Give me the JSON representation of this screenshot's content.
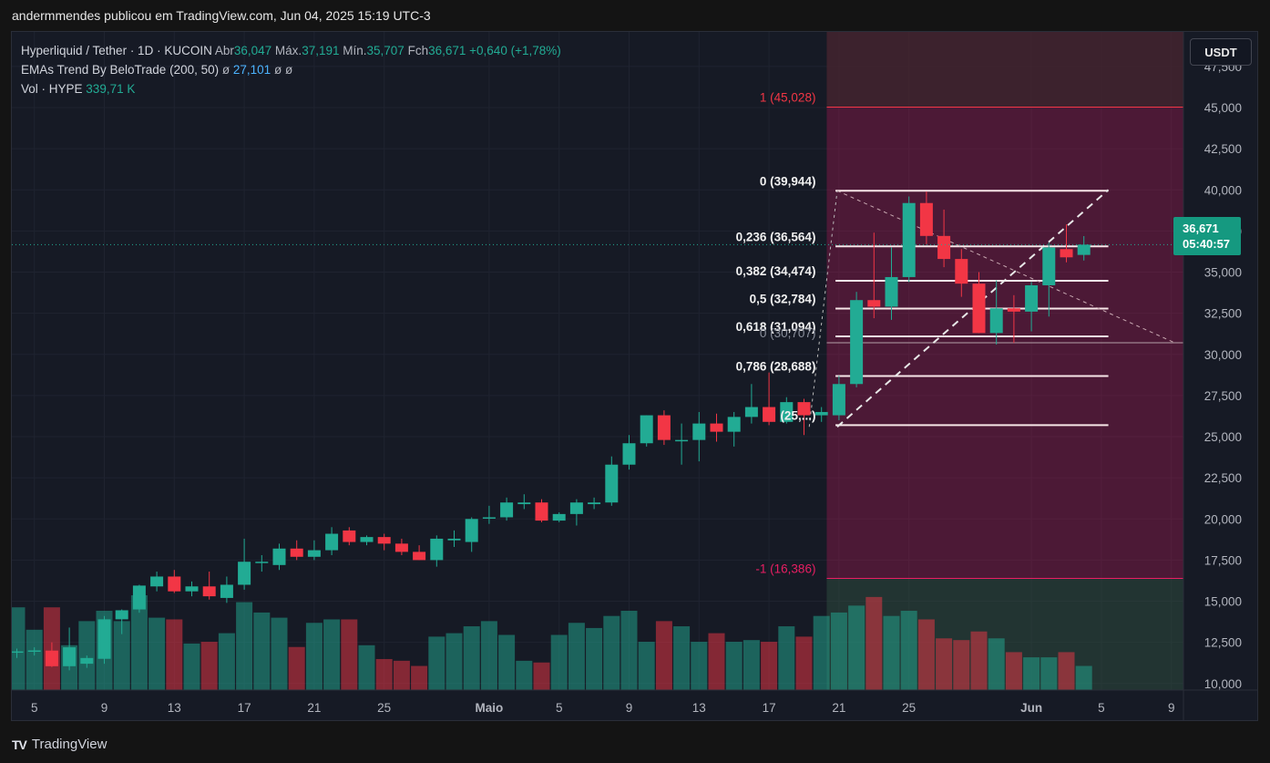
{
  "header": {
    "published_by": "andermmendes publicou em TradingView.com, Jun 04, 2025 15:19 UTC-3"
  },
  "legend": {
    "symbol": "Hyperliquid / Tether · 1D · KUCOIN",
    "open_label": "Abr",
    "open": "36,047",
    "high_label": "Máx.",
    "high": "37,191",
    "low_label": "Mín.",
    "low": "35,707",
    "close_label": "Fch",
    "close": "36,671",
    "change": "+0,640 (+1,78%)",
    "ema_name": "EMAs Trend By BeloTrade (200, 50)",
    "ema_sym1": "ø",
    "ema_value": "27,101",
    "ema_sym2": "ø",
    "ema_sym3": "ø",
    "vol_name": "Vol · HYPE",
    "vol_value": "339,71 K"
  },
  "currency_button": "USDT",
  "price_tag": {
    "price": "36,671",
    "countdown": "05:40:57"
  },
  "footer": {
    "brand_mark": "TV",
    "brand": "TradingView"
  },
  "colors": {
    "up": "#22ab94",
    "down": "#f23645",
    "up_vol": "#22ab94",
    "down_vol": "#f23645",
    "fib_line": "#f7e6e8",
    "zone_red": "#c2185b",
    "zone_top": "#4a2630"
  },
  "chart_data": {
    "type": "candlestick",
    "ylim": [
      9600,
      49600
    ],
    "y_ticks": [
      "10,000",
      "12,500",
      "15,000",
      "17,500",
      "20,000",
      "22,500",
      "25,000",
      "27,500",
      "30,000",
      "32,500",
      "35,000",
      "37,500",
      "40,000",
      "42,500",
      "45,000",
      "47,500"
    ],
    "y_tick_values": [
      10000,
      12500,
      15000,
      17500,
      20000,
      22500,
      25000,
      27500,
      30000,
      32500,
      35000,
      37500,
      40000,
      42500,
      45000,
      47500
    ],
    "x_ticks": [
      {
        "label": "5",
        "index": 1
      },
      {
        "label": "9",
        "index": 5
      },
      {
        "label": "13",
        "index": 9
      },
      {
        "label": "17",
        "index": 13
      },
      {
        "label": "21",
        "index": 17
      },
      {
        "label": "25",
        "index": 21
      },
      {
        "label": "Maio",
        "index": 27
      },
      {
        "label": "5",
        "index": 31
      },
      {
        "label": "9",
        "index": 35
      },
      {
        "label": "13",
        "index": 39
      },
      {
        "label": "17",
        "index": 43
      },
      {
        "label": "21",
        "index": 47
      },
      {
        "label": "25",
        "index": 51
      },
      {
        "label": "Jun",
        "index": 58
      },
      {
        "label": "5",
        "index": 62
      },
      {
        "label": "9",
        "index": 66
      }
    ],
    "candles": [
      {
        "o": 11880,
        "h": 12120,
        "l": 11550,
        "c": 11950
      },
      {
        "o": 11970,
        "h": 12200,
        "l": 11700,
        "c": 12010
      },
      {
        "o": 12000,
        "h": 12500,
        "l": 11000,
        "c": 11050
      },
      {
        "o": 11050,
        "h": 13400,
        "l": 10800,
        "c": 12200
      },
      {
        "o": 11200,
        "h": 11700,
        "l": 10950,
        "c": 11550
      },
      {
        "o": 11500,
        "h": 14100,
        "l": 11200,
        "c": 13900
      },
      {
        "o": 13900,
        "h": 14500,
        "l": 13000,
        "c": 14450
      },
      {
        "o": 14500,
        "h": 16000,
        "l": 14300,
        "c": 15950
      },
      {
        "o": 15900,
        "h": 16800,
        "l": 15600,
        "c": 16500
      },
      {
        "o": 16500,
        "h": 16900,
        "l": 15500,
        "c": 15600
      },
      {
        "o": 15600,
        "h": 16200,
        "l": 15300,
        "c": 15900
      },
      {
        "o": 15900,
        "h": 16800,
        "l": 15100,
        "c": 15300
      },
      {
        "o": 15200,
        "h": 16500,
        "l": 14900,
        "c": 16000
      },
      {
        "o": 16000,
        "h": 18800,
        "l": 15700,
        "c": 17400
      },
      {
        "o": 17400,
        "h": 17800,
        "l": 16800,
        "c": 17400
      },
      {
        "o": 17200,
        "h": 18500,
        "l": 16900,
        "c": 18200
      },
      {
        "o": 18200,
        "h": 18700,
        "l": 17500,
        "c": 17700
      },
      {
        "o": 17700,
        "h": 18700,
        "l": 17500,
        "c": 18100
      },
      {
        "o": 18100,
        "h": 19500,
        "l": 17800,
        "c": 19100
      },
      {
        "o": 19300,
        "h": 19500,
        "l": 18400,
        "c": 18600
      },
      {
        "o": 18600,
        "h": 19000,
        "l": 18400,
        "c": 18900
      },
      {
        "o": 18900,
        "h": 19100,
        "l": 18100,
        "c": 18500
      },
      {
        "o": 18500,
        "h": 18800,
        "l": 17800,
        "c": 18000
      },
      {
        "o": 18000,
        "h": 18400,
        "l": 17500,
        "c": 17500
      },
      {
        "o": 17500,
        "h": 19000,
        "l": 17100,
        "c": 18800
      },
      {
        "o": 18700,
        "h": 19300,
        "l": 18300,
        "c": 18800
      },
      {
        "o": 18600,
        "h": 20100,
        "l": 18000,
        "c": 20000
      },
      {
        "o": 20100,
        "h": 20800,
        "l": 19700,
        "c": 20100
      },
      {
        "o": 20100,
        "h": 21300,
        "l": 19900,
        "c": 21000
      },
      {
        "o": 20900,
        "h": 21500,
        "l": 20600,
        "c": 21000
      },
      {
        "o": 21000,
        "h": 21200,
        "l": 19800,
        "c": 19900
      },
      {
        "o": 19900,
        "h": 20400,
        "l": 19800,
        "c": 20300
      },
      {
        "o": 20300,
        "h": 21200,
        "l": 19600,
        "c": 21000
      },
      {
        "o": 20900,
        "h": 21300,
        "l": 20600,
        "c": 21000
      },
      {
        "o": 21000,
        "h": 23800,
        "l": 20800,
        "c": 23300
      },
      {
        "o": 23300,
        "h": 25100,
        "l": 23000,
        "c": 24600
      },
      {
        "o": 24600,
        "h": 26300,
        "l": 24400,
        "c": 26300
      },
      {
        "o": 26300,
        "h": 26600,
        "l": 24500,
        "c": 24800
      },
      {
        "o": 24800,
        "h": 25800,
        "l": 23300,
        "c": 24800
      },
      {
        "o": 24800,
        "h": 26500,
        "l": 23500,
        "c": 25800
      },
      {
        "o": 25800,
        "h": 26400,
        "l": 24700,
        "c": 25300
      },
      {
        "o": 25300,
        "h": 26500,
        "l": 24400,
        "c": 26200
      },
      {
        "o": 26200,
        "h": 28200,
        "l": 25800,
        "c": 26800
      },
      {
        "o": 26800,
        "h": 28900,
        "l": 25700,
        "c": 25900
      },
      {
        "o": 25900,
        "h": 27400,
        "l": 25800,
        "c": 27100
      },
      {
        "o": 27100,
        "h": 27300,
        "l": 25100,
        "c": 26300
      },
      {
        "o": 26300,
        "h": 26800,
        "l": 25900,
        "c": 26500
      },
      {
        "o": 26300,
        "h": 28700,
        "l": 26000,
        "c": 28200
      },
      {
        "o": 28200,
        "h": 33800,
        "l": 28000,
        "c": 33300
      },
      {
        "o": 33300,
        "h": 37400,
        "l": 32200,
        "c": 32900
      },
      {
        "o": 32900,
        "h": 36500,
        "l": 32100,
        "c": 34700
      },
      {
        "o": 34700,
        "h": 39600,
        "l": 34400,
        "c": 39200
      },
      {
        "o": 39200,
        "h": 39900,
        "l": 36700,
        "c": 37200
      },
      {
        "o": 37200,
        "h": 38800,
        "l": 35300,
        "c": 35800
      },
      {
        "o": 35800,
        "h": 36400,
        "l": 33500,
        "c": 34300
      },
      {
        "o": 34300,
        "h": 35000,
        "l": 31300,
        "c": 31300
      },
      {
        "o": 31300,
        "h": 34500,
        "l": 30600,
        "c": 32800
      },
      {
        "o": 32800,
        "h": 33600,
        "l": 30700,
        "c": 32600
      },
      {
        "o": 32600,
        "h": 34400,
        "l": 31400,
        "c": 34200
      },
      {
        "o": 34200,
        "h": 36800,
        "l": 32300,
        "c": 36500
      },
      {
        "o": 36400,
        "h": 37900,
        "l": 35600,
        "c": 35900
      },
      {
        "o": 36047,
        "h": 37191,
        "l": 35707,
        "c": 36671
      }
    ],
    "volume_ylim": [
      0,
      100
    ],
    "volumes": [
      48,
      35,
      48,
      26,
      40,
      46,
      40,
      55,
      42,
      41,
      27,
      28,
      33,
      51,
      45,
      42,
      25,
      39,
      41,
      41,
      26,
      18,
      17,
      14,
      31,
      33,
      37,
      40,
      32,
      17,
      16,
      32,
      39,
      36,
      43,
      46,
      28,
      40,
      37,
      28,
      33,
      28,
      29,
      28,
      37,
      31,
      43,
      45,
      49,
      54,
      43,
      46,
      41,
      30,
      29,
      34,
      30,
      22,
      19,
      19,
      22,
      14
    ]
  },
  "fib": {
    "levels": [
      {
        "label": "1 (45,028)",
        "value": 45028
      },
      {
        "label": "0 (39,944)",
        "value": 39944
      },
      {
        "label": "0,236 (36,564)",
        "value": 36564
      },
      {
        "label": "0,382 (34,474)",
        "value": 34474
      },
      {
        "label": "0,5 (32,784)",
        "value": 32784
      },
      {
        "label": "0,618 (31,094)",
        "value": 31094
      },
      {
        "label": "0,786 (28,688)",
        "value": 28688
      },
      {
        "label": "(25,...)",
        "value": 25700
      },
      {
        "label": "-1 (16,386)",
        "value": 16386
      }
    ],
    "overlap_label": "0 (30,707)",
    "overlap_value": 30707
  }
}
